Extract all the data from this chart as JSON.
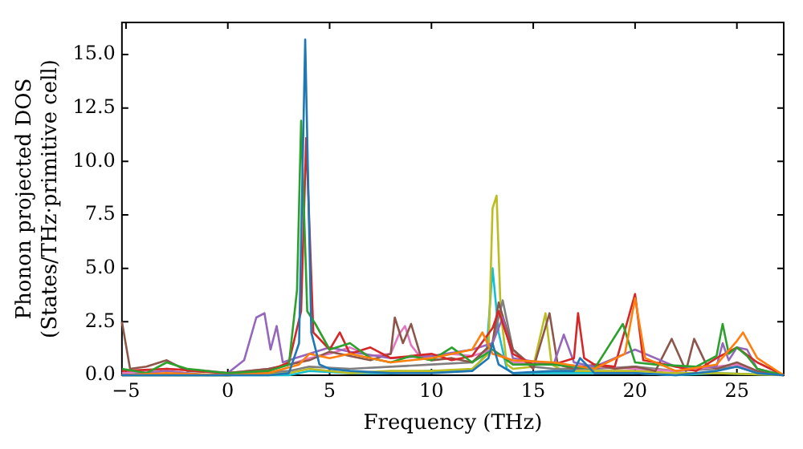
{
  "chart_data": {
    "type": "line",
    "xlabel": "Frequency (THz)",
    "ylabel": "Phonon projected DOS\n(States/THz·primitive cell)",
    "xlim": [
      -5.2,
      27.3
    ],
    "ylim": [
      0,
      16.5
    ],
    "xticks": [
      -5,
      0,
      5,
      10,
      15,
      20,
      25
    ],
    "yticks": [
      {
        "value": 0,
        "label": "0.0"
      },
      {
        "value": 2.5,
        "label": "2.5"
      },
      {
        "value": 5,
        "label": "5.0"
      },
      {
        "value": 7.5,
        "label": "7.5"
      },
      {
        "value": 10,
        "label": "10.0"
      },
      {
        "value": 12.5,
        "label": "12.5"
      },
      {
        "value": 15,
        "label": "15.0"
      }
    ],
    "grid": false,
    "legend": false,
    "marker": "none",
    "line_style": "solid",
    "series": [
      {
        "color": "#1f77b4",
        "x": [
          -5.2,
          -3,
          0,
          2,
          3,
          3.5,
          3.8,
          4.1,
          4.5,
          5,
          6,
          8,
          10,
          12,
          12.8,
          13,
          13.3,
          14,
          16,
          17,
          17.3,
          18,
          20,
          22,
          24,
          25,
          26,
          27.3
        ],
        "values": [
          0,
          0,
          0,
          0,
          0.1,
          1.5,
          15.7,
          2,
          0.5,
          0.3,
          0.2,
          0.1,
          0.1,
          0.2,
          0.8,
          1.5,
          0.5,
          0.1,
          0.2,
          0.2,
          0.8,
          0.1,
          0.1,
          0,
          0.2,
          0.4,
          0.1,
          0
        ]
      },
      {
        "color": "#ff7f0e",
        "x": [
          -5.2,
          -3,
          0,
          2,
          3.5,
          4,
          5,
          6,
          8,
          10,
          12,
          12.5,
          13,
          14,
          16,
          18,
          19.5,
          20,
          20.5,
          22,
          24,
          25,
          25.3,
          26,
          27.3
        ],
        "values": [
          0,
          0.1,
          0,
          0.1,
          0.5,
          1,
          0.8,
          1,
          0.6,
          0.8,
          1.2,
          2,
          1,
          0.7,
          0.6,
          0.3,
          1,
          3.6,
          0.8,
          0.2,
          0.5,
          1.6,
          2,
          0.8,
          0
        ]
      },
      {
        "color": "#2ca02c",
        "x": [
          -5.2,
          -4,
          -3,
          -2,
          0,
          2,
          3,
          3.4,
          3.6,
          3.9,
          4.3,
          5,
          6,
          7,
          8,
          9,
          10,
          11,
          12,
          13,
          14,
          16,
          17,
          18,
          19,
          19.4,
          20,
          21,
          23,
          24,
          24.3,
          24.6,
          25,
          25.5,
          26,
          27.3
        ],
        "values": [
          0.3,
          0.1,
          0.6,
          0.3,
          0.1,
          0.2,
          0.5,
          4,
          11.9,
          3,
          2.4,
          1.2,
          1.5,
          0.8,
          0.6,
          0.9,
          0.7,
          1.3,
          0.6,
          1.2,
          0.5,
          0.5,
          0.4,
          0.3,
          1.8,
          2.4,
          0.6,
          0.5,
          0.4,
          0.9,
          2.4,
          1,
          1.3,
          0.9,
          0.3,
          0
        ]
      },
      {
        "color": "#d62728",
        "x": [
          -5.2,
          -3,
          0,
          2,
          3,
          3.6,
          3.85,
          4.2,
          5,
          5.5,
          6,
          7,
          8,
          10,
          11,
          12,
          13,
          13.3,
          14,
          15,
          16,
          17,
          17.2,
          17.5,
          18,
          19,
          20,
          20.4,
          21,
          23,
          24,
          25,
          26,
          27.3
        ],
        "values": [
          0.2,
          0.3,
          0.1,
          0.2,
          0.6,
          3,
          11.1,
          2,
          1.2,
          2,
          1,
          1.3,
          0.8,
          1,
          0.7,
          0.9,
          2.2,
          3,
          1,
          0.5,
          0.5,
          0.8,
          2.9,
          0.8,
          0.5,
          0.4,
          3.8,
          0.7,
          0.6,
          0.2,
          0.8,
          1.3,
          0.6,
          0
        ]
      },
      {
        "color": "#9467bd",
        "x": [
          -5.2,
          -3,
          -1,
          0,
          0.8,
          1.4,
          1.8,
          2.1,
          2.4,
          2.7,
          3.3,
          4,
          5,
          6,
          8,
          10,
          12,
          13,
          13.5,
          14,
          16,
          16.5,
          17,
          18,
          19.5,
          20,
          22,
          24,
          24.3,
          24.6,
          25,
          25.5,
          26,
          27.3
        ],
        "values": [
          0,
          0.2,
          0,
          0.1,
          0.7,
          2.7,
          2.9,
          1.2,
          2.3,
          0.6,
          0.8,
          1,
          1.3,
          1.1,
          0.8,
          0.9,
          1.2,
          1.5,
          2.7,
          0.8,
          0.5,
          1.9,
          0.6,
          0.4,
          1,
          1.2,
          0.4,
          0.4,
          1.5,
          0.7,
          1.3,
          1.2,
          0.3,
          0
        ]
      },
      {
        "color": "#8c564b",
        "x": [
          -5.2,
          -4.8,
          -4,
          -3,
          -2,
          0,
          2,
          3,
          4,
          5,
          6,
          7,
          8,
          8.2,
          8.6,
          9,
          9.5,
          10,
          11,
          12,
          13,
          13.3,
          14,
          15,
          15.8,
          16.2,
          17,
          18,
          19,
          20,
          21,
          21.8,
          22.5,
          22.9,
          23.5,
          24,
          25,
          26,
          27.3
        ],
        "values": [
          2.5,
          0.3,
          0.4,
          0.7,
          0.2,
          0.1,
          0.3,
          0.5,
          0.7,
          1.1,
          0.9,
          0.7,
          1,
          2.7,
          1.5,
          2.4,
          0.8,
          0.7,
          0.8,
          0.6,
          1.5,
          3.4,
          1.2,
          0.3,
          2.9,
          0.5,
          0.3,
          0.5,
          0.3,
          0.4,
          0.2,
          1.7,
          0.2,
          1.7,
          0.5,
          0.3,
          0.6,
          0.2,
          0
        ]
      },
      {
        "color": "#e377c2",
        "x": [
          -5.2,
          -3,
          -1,
          0,
          2,
          3,
          4,
          5,
          6,
          7,
          8,
          8.4,
          8.7,
          9,
          9.5,
          10,
          11,
          12,
          13,
          14,
          16,
          18,
          20,
          22,
          24,
          25,
          26,
          27.3
        ],
        "values": [
          0.1,
          0.3,
          0.2,
          0.1,
          0.3,
          0.5,
          0.8,
          1,
          1.3,
          0.9,
          1,
          1.9,
          2.3,
          1.4,
          0.8,
          0.9,
          1,
          0.9,
          1.2,
          0.6,
          0.5,
          0.4,
          0.3,
          0.2,
          0.4,
          0.5,
          0.2,
          0
        ]
      },
      {
        "color": "#7f7f7f",
        "x": [
          -5.2,
          0,
          3,
          4,
          6,
          8,
          10,
          12,
          13,
          13.5,
          14,
          15,
          16,
          18,
          20,
          22,
          24,
          25,
          26,
          27.3
        ],
        "values": [
          0,
          0,
          0.2,
          0.4,
          0.3,
          0.4,
          0.5,
          0.6,
          1.5,
          3.5,
          1.2,
          0.4,
          0.3,
          0.3,
          0.4,
          0.2,
          0.3,
          0.4,
          0.1,
          0
        ]
      },
      {
        "color": "#bcbd22",
        "x": [
          -5.2,
          0,
          3,
          4,
          6,
          8,
          10,
          12,
          12.8,
          13,
          13.2,
          13.4,
          13.7,
          14,
          15,
          15.6,
          15.9,
          16.5,
          18,
          20,
          22,
          24,
          27.3
        ],
        "values": [
          0,
          0,
          0.1,
          0.3,
          0.1,
          0.2,
          0.2,
          0.3,
          1,
          7.8,
          8.4,
          3,
          0.5,
          0.3,
          0.4,
          2.9,
          0.5,
          0.2,
          0.2,
          0.2,
          0.1,
          0.1,
          0
        ]
      },
      {
        "color": "#17becf",
        "x": [
          -5.2,
          0,
          3,
          4,
          6,
          8,
          10,
          12,
          12.7,
          13,
          13.3,
          13.7,
          14,
          16,
          18,
          20,
          22,
          24,
          27.3
        ],
        "values": [
          0,
          0,
          0,
          0.2,
          0.1,
          0.1,
          0.2,
          0.2,
          1,
          5,
          2,
          0.3,
          0.1,
          0.1,
          0.1,
          0.1,
          0,
          0.1,
          0
        ]
      }
    ]
  }
}
